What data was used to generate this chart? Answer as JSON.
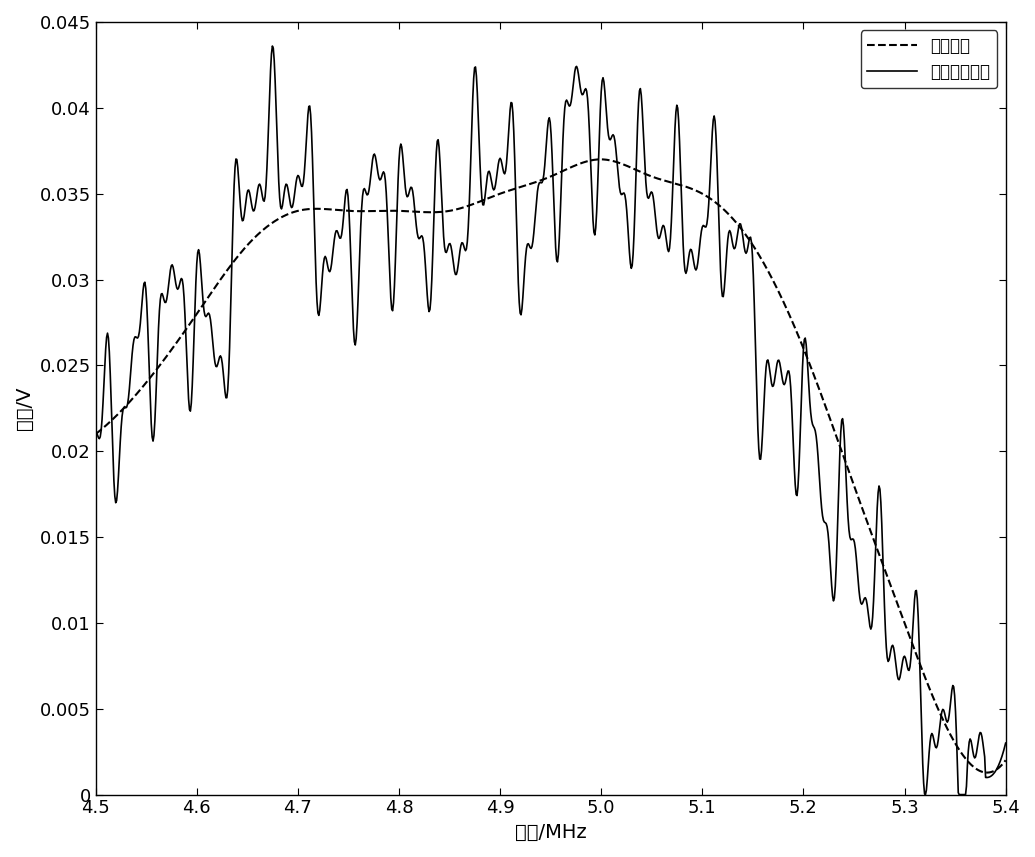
{
  "title": "",
  "xlabel": "频率/MHz",
  "ylabel": "幅值/V",
  "xlim": [
    4.5,
    5.4
  ],
  "ylim": [
    0,
    0.045
  ],
  "xticks": [
    4.5,
    4.6,
    4.7,
    4.8,
    4.9,
    5.0,
    5.1,
    5.2,
    5.3,
    5.4
  ],
  "yticks": [
    0,
    0.005,
    0.01,
    0.015,
    0.02,
    0.025,
    0.03,
    0.035,
    0.04,
    0.045
  ],
  "legend_labels": [
    "原始信号",
    "滤波后的信号"
  ],
  "line_color": "#000000",
  "background_color": "#ffffff",
  "figsize": [
    10.35,
    8.57
  ],
  "dpi": 100
}
